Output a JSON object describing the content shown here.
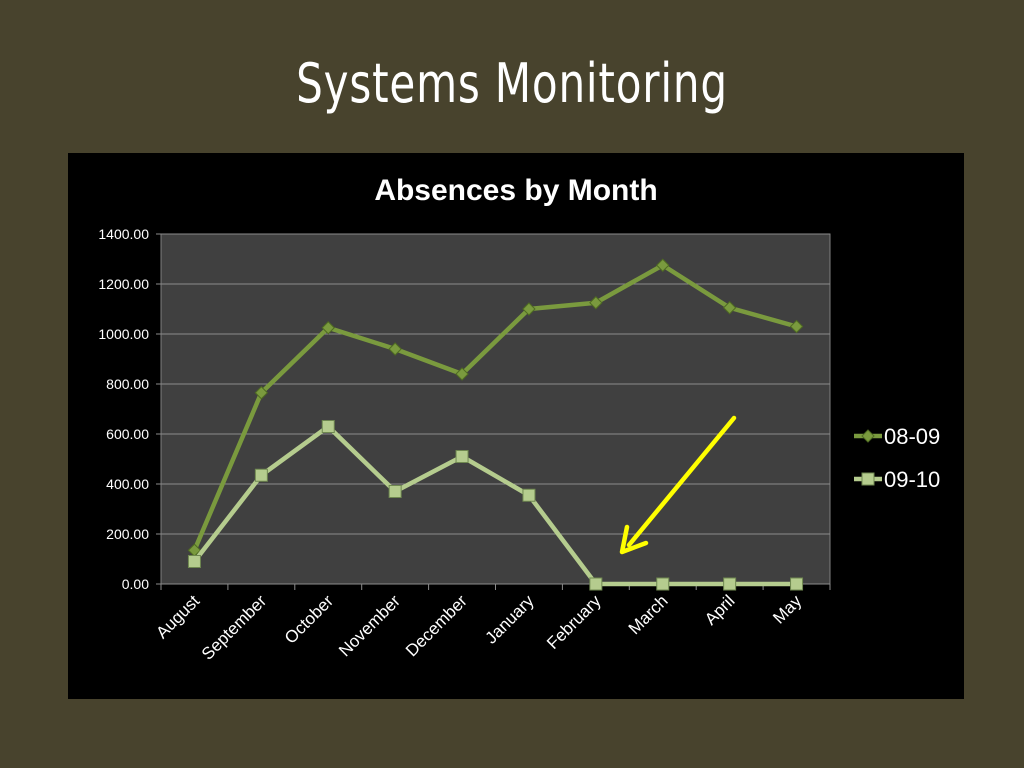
{
  "slide": {
    "title": "Systems Monitoring"
  },
  "colors": {
    "background": "#48432d",
    "chart_bg": "#000000",
    "plot_bg": "#404040",
    "series_0809": "#7a9a3e",
    "series_0910": "#b5cc8e",
    "arrow": "#ffff00"
  },
  "chart_data": {
    "type": "line",
    "title": "Absences by Month",
    "xlabel": "",
    "ylabel": "",
    "ylim": [
      0,
      1400
    ],
    "yticks": [
      "0.00",
      "200.00",
      "400.00",
      "600.00",
      "800.00",
      "1000.00",
      "1200.00",
      "1400.00"
    ],
    "categories": [
      "August",
      "September",
      "October",
      "November",
      "December",
      "January",
      "February",
      "March",
      "April",
      "May"
    ],
    "series": [
      {
        "name": "08-09",
        "marker": "diamond",
        "values": [
          135,
          765,
          1025,
          940,
          840,
          1100,
          1125,
          1275,
          1105,
          1030
        ]
      },
      {
        "name": "09-10",
        "marker": "square",
        "values": [
          90,
          435,
          630,
          370,
          510,
          355,
          0,
          0,
          0,
          0
        ]
      }
    ],
    "grid": true,
    "legend": "right",
    "annotation": {
      "type": "arrow",
      "color": "#ffff00",
      "points_to": "February"
    }
  }
}
